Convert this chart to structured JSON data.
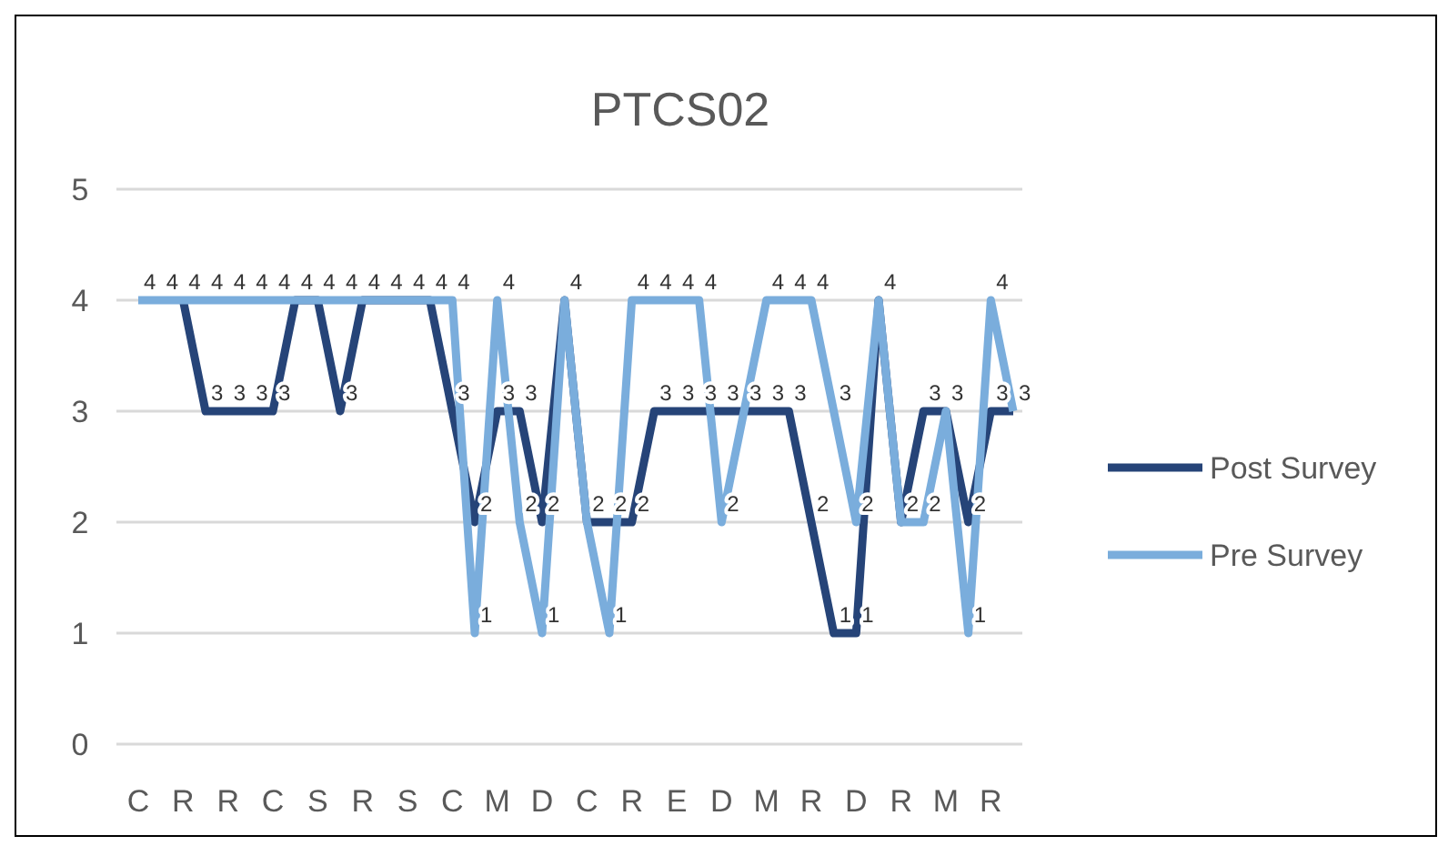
{
  "chart_data": {
    "type": "line",
    "title": "PTCS02",
    "categories": [
      "C",
      null,
      "R",
      null,
      "R",
      null,
      "C",
      null,
      "S",
      null,
      "R",
      null,
      "S",
      null,
      "C",
      null,
      "M",
      null,
      "D",
      null,
      "C",
      null,
      "R",
      null,
      "E",
      null,
      "D",
      null,
      "M",
      null,
      "R",
      null,
      "D",
      null,
      "R",
      null,
      "M",
      null,
      "R",
      null
    ],
    "series": [
      {
        "name": "Post Survey",
        "color": "#264478",
        "values": [
          null,
          null,
          4,
          3,
          3,
          3,
          3,
          4,
          4,
          3,
          4,
          4,
          4,
          4,
          3,
          2,
          3,
          3,
          2,
          4,
          2,
          2,
          2,
          3,
          3,
          3,
          3,
          3,
          3,
          3,
          2,
          1,
          1,
          4,
          2,
          3,
          3,
          2,
          3,
          3
        ],
        "value_labels": [
          null,
          null,
          null,
          "3",
          "3",
          "3",
          "3",
          null,
          null,
          "3",
          null,
          null,
          null,
          null,
          "3",
          "2",
          "3",
          "3",
          "2",
          null,
          null,
          "2",
          "2",
          "3",
          "3",
          "3",
          "3",
          null,
          "3",
          "3",
          "2",
          "1",
          "1",
          null,
          null,
          "3",
          null,
          "2",
          "3",
          null
        ]
      },
      {
        "name": "Pre Survey",
        "color": "#7aaddc",
        "values": [
          4,
          4,
          4,
          4,
          4,
          4,
          4,
          4,
          4,
          4,
          4,
          4,
          4,
          4,
          4,
          1,
          4,
          2,
          1,
          4,
          2,
          1,
          4,
          4,
          4,
          4,
          2,
          3,
          4,
          4,
          4,
          3,
          2,
          4,
          2,
          2,
          3,
          1,
          4,
          3
        ],
        "value_labels": [
          "4",
          "4",
          "4",
          "4",
          "4",
          "4",
          "4",
          "4",
          "4",
          "4",
          "4",
          "4",
          "4",
          "4",
          "4",
          "1",
          "4",
          "2",
          "1",
          "4",
          "2",
          "1",
          "4",
          "4",
          "4",
          "4",
          "2",
          "3",
          "4",
          "4",
          "4",
          "3",
          "2",
          "4",
          "2",
          "2",
          "3",
          "1",
          "4",
          "3"
        ]
      }
    ],
    "ylim": [
      0,
      5
    ],
    "yticks": [
      0,
      1,
      2,
      3,
      4,
      5
    ],
    "grid": "y",
    "legend": "right",
    "marker": "none",
    "line_style": "solid"
  }
}
